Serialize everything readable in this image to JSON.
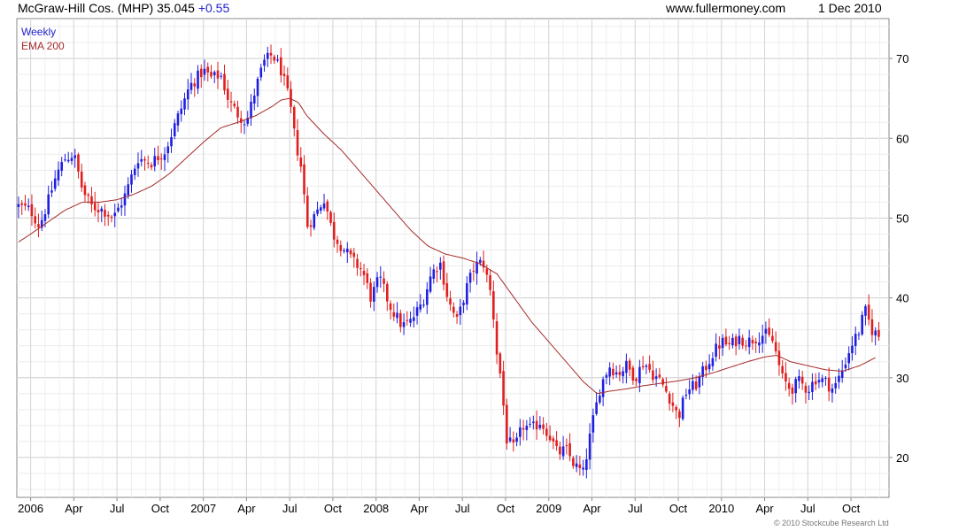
{
  "header": {
    "title_main": "McGraw-Hill Cos. (MHP) 35.045",
    "title_change": "+0.55",
    "site": "www.fullermoney.com",
    "date": "1 Dec 2010"
  },
  "footer": {
    "copyright": "© 2010 Stockcube Research Ltd"
  },
  "colors": {
    "up": "#1f1fe0",
    "down": "#e01f1f",
    "ema": "#a52a2a",
    "grid": "#dcdcdc",
    "legend_weekly": "#2222cc"
  },
  "chart_data": {
    "type": "candlestick",
    "series": [
      {
        "name": "Weekly",
        "kind": "candles"
      },
      {
        "name": "EMA 200",
        "kind": "line"
      }
    ],
    "ylim": [
      15,
      75
    ],
    "yticks": [
      20,
      30,
      40,
      50,
      60,
      70
    ],
    "xlim": [
      2005.92,
      2010.97
    ],
    "xticks": [
      {
        "label": "2006",
        "t": 2006.0
      },
      {
        "label": "Apr",
        "t": 2006.25
      },
      {
        "label": "Jul",
        "t": 2006.5
      },
      {
        "label": "Oct",
        "t": 2006.75
      },
      {
        "label": "2007",
        "t": 2007.0
      },
      {
        "label": "Apr",
        "t": 2007.25
      },
      {
        "label": "Jul",
        "t": 2007.5
      },
      {
        "label": "Oct",
        "t": 2007.75
      },
      {
        "label": "2008",
        "t": 2008.0
      },
      {
        "label": "Apr",
        "t": 2008.25
      },
      {
        "label": "Jul",
        "t": 2008.5
      },
      {
        "label": "Oct",
        "t": 2008.75
      },
      {
        "label": "2009",
        "t": 2009.0
      },
      {
        "label": "Apr",
        "t": 2009.25
      },
      {
        "label": "Jul",
        "t": 2009.5
      },
      {
        "label": "Oct",
        "t": 2009.75
      },
      {
        "label": "2010",
        "t": 2010.0
      },
      {
        "label": "Apr",
        "t": 2010.25
      },
      {
        "label": "Jul",
        "t": 2010.5
      },
      {
        "label": "Oct",
        "t": 2010.75
      }
    ],
    "close_anchors": [
      [
        2005.93,
        51.5
      ],
      [
        2006.0,
        51.0
      ],
      [
        2006.05,
        49.0
      ],
      [
        2006.1,
        52.0
      ],
      [
        2006.15,
        55.5
      ],
      [
        2006.2,
        57.5
      ],
      [
        2006.25,
        58.0
      ],
      [
        2006.3,
        53.5
      ],
      [
        2006.35,
        51.5
      ],
      [
        2006.42,
        51.0
      ],
      [
        2006.48,
        50.0
      ],
      [
        2006.55,
        53.0
      ],
      [
        2006.62,
        57.5
      ],
      [
        2006.7,
        57.0
      ],
      [
        2006.78,
        58.5
      ],
      [
        2006.85,
        62.5
      ],
      [
        2006.92,
        66.5
      ],
      [
        2007.0,
        68.5
      ],
      [
        2007.05,
        67.5
      ],
      [
        2007.1,
        68.0
      ],
      [
        2007.15,
        64.5
      ],
      [
        2007.2,
        63.0
      ],
      [
        2007.25,
        62.0
      ],
      [
        2007.3,
        66.0
      ],
      [
        2007.35,
        69.5
      ],
      [
        2007.4,
        70.5
      ],
      [
        2007.45,
        68.5
      ],
      [
        2007.5,
        64.5
      ],
      [
        2007.53,
        60.0
      ],
      [
        2007.57,
        56.0
      ],
      [
        2007.6,
        49.0
      ],
      [
        2007.65,
        50.5
      ],
      [
        2007.7,
        52.5
      ],
      [
        2007.75,
        48.0
      ],
      [
        2007.8,
        46.5
      ],
      [
        2007.87,
        44.5
      ],
      [
        2007.92,
        43.5
      ],
      [
        2007.97,
        40.0
      ],
      [
        2008.02,
        42.5
      ],
      [
        2008.08,
        39.0
      ],
      [
        2008.15,
        36.5
      ],
      [
        2008.2,
        37.0
      ],
      [
        2008.27,
        39.5
      ],
      [
        2008.32,
        43.0
      ],
      [
        2008.37,
        44.5
      ],
      [
        2008.42,
        39.5
      ],
      [
        2008.47,
        37.0
      ],
      [
        2008.52,
        41.0
      ],
      [
        2008.57,
        44.0
      ],
      [
        2008.62,
        44.5
      ],
      [
        2008.67,
        40.0
      ],
      [
        2008.7,
        33.0
      ],
      [
        2008.73,
        29.0
      ],
      [
        2008.75,
        22.5
      ],
      [
        2008.8,
        21.0
      ],
      [
        2008.85,
        24.0
      ],
      [
        2008.9,
        23.5
      ],
      [
        2008.95,
        24.5
      ],
      [
        2009.0,
        23.0
      ],
      [
        2009.05,
        20.5
      ],
      [
        2009.1,
        21.0
      ],
      [
        2009.15,
        19.0
      ],
      [
        2009.2,
        18.0
      ],
      [
        2009.25,
        24.0
      ],
      [
        2009.3,
        29.0
      ],
      [
        2009.35,
        31.5
      ],
      [
        2009.4,
        30.5
      ],
      [
        2009.45,
        31.5
      ],
      [
        2009.5,
        30.0
      ],
      [
        2009.55,
        32.0
      ],
      [
        2009.6,
        30.5
      ],
      [
        2009.65,
        29.5
      ],
      [
        2009.7,
        27.5
      ],
      [
        2009.75,
        25.0
      ],
      [
        2009.8,
        28.5
      ],
      [
        2009.85,
        29.0
      ],
      [
        2009.9,
        31.0
      ],
      [
        2009.95,
        33.0
      ],
      [
        2010.0,
        34.5
      ],
      [
        2010.05,
        34.0
      ],
      [
        2010.1,
        35.0
      ],
      [
        2010.15,
        34.5
      ],
      [
        2010.2,
        35.0
      ],
      [
        2010.25,
        35.5
      ],
      [
        2010.3,
        34.5
      ],
      [
        2010.35,
        30.0
      ],
      [
        2010.4,
        28.5
      ],
      [
        2010.45,
        29.5
      ],
      [
        2010.5,
        28.5
      ],
      [
        2010.55,
        30.0
      ],
      [
        2010.6,
        29.5
      ],
      [
        2010.65,
        28.5
      ],
      [
        2010.7,
        31.0
      ],
      [
        2010.75,
        34.0
      ],
      [
        2010.8,
        36.0
      ],
      [
        2010.83,
        38.5
      ],
      [
        2010.87,
        36.0
      ],
      [
        2010.92,
        35.0
      ]
    ],
    "ema_anchors": [
      [
        2005.93,
        47.0
      ],
      [
        2006.0,
        48.0
      ],
      [
        2006.1,
        49.5
      ],
      [
        2006.2,
        51.0
      ],
      [
        2006.3,
        52.0
      ],
      [
        2006.4,
        52.0
      ],
      [
        2006.5,
        52.3
      ],
      [
        2006.6,
        53.0
      ],
      [
        2006.7,
        54.0
      ],
      [
        2006.8,
        55.5
      ],
      [
        2006.9,
        57.5
      ],
      [
        2007.0,
        59.5
      ],
      [
        2007.1,
        61.3
      ],
      [
        2007.2,
        62.0
      ],
      [
        2007.3,
        62.8
      ],
      [
        2007.4,
        64.0
      ],
      [
        2007.45,
        64.8
      ],
      [
        2007.5,
        65.0
      ],
      [
        2007.55,
        64.5
      ],
      [
        2007.6,
        62.8
      ],
      [
        2007.7,
        60.5
      ],
      [
        2007.8,
        58.5
      ],
      [
        2007.9,
        56.0
      ],
      [
        2008.0,
        53.5
      ],
      [
        2008.1,
        51.0
      ],
      [
        2008.2,
        48.5
      ],
      [
        2008.3,
        46.5
      ],
      [
        2008.4,
        45.5
      ],
      [
        2008.5,
        45.0
      ],
      [
        2008.6,
        44.3
      ],
      [
        2008.7,
        43.0
      ],
      [
        2008.8,
        40.0
      ],
      [
        2008.9,
        37.0
      ],
      [
        2009.0,
        34.5
      ],
      [
        2009.1,
        32.0
      ],
      [
        2009.2,
        29.5
      ],
      [
        2009.28,
        28.0
      ],
      [
        2009.35,
        28.3
      ],
      [
        2009.45,
        28.6
      ],
      [
        2009.55,
        29.0
      ],
      [
        2009.65,
        29.3
      ],
      [
        2009.75,
        29.6
      ],
      [
        2009.85,
        30.0
      ],
      [
        2009.95,
        30.6
      ],
      [
        2010.05,
        31.3
      ],
      [
        2010.15,
        32.0
      ],
      [
        2010.25,
        32.6
      ],
      [
        2010.32,
        32.8
      ],
      [
        2010.4,
        32.0
      ],
      [
        2010.5,
        31.5
      ],
      [
        2010.6,
        31.0
      ],
      [
        2010.7,
        30.8
      ],
      [
        2010.8,
        31.5
      ],
      [
        2010.9,
        32.6
      ]
    ]
  }
}
